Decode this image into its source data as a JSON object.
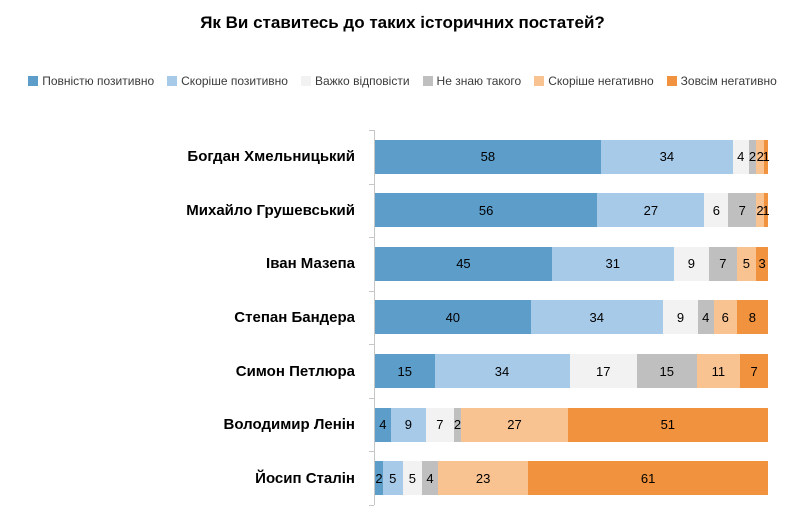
{
  "title": "Як Ви ставитесь до таких історичних постатей?",
  "chart_data": {
    "type": "bar",
    "stacked": true,
    "orientation": "horizontal",
    "title": "Як Ви ставитесь до таких історичних постатей?",
    "xlabel": "",
    "ylabel": "",
    "xlim": [
      0,
      100
    ],
    "grid": false,
    "legend_position": "top",
    "value_labels": "inside-center",
    "categories": [
      "Богдан Хмельницький",
      "Михайло Грушевський",
      "Іван Мазепа",
      "Степан Бандера",
      "Симон Петлюра",
      "Володимир Ленін",
      "Йосип Сталін"
    ],
    "series": [
      {
        "name": "Повністю позитивно",
        "color": "#5C9DCA",
        "values": [
          58,
          56,
          45,
          40,
          15,
          4,
          2
        ]
      },
      {
        "name": "Скоріше позитивно",
        "color": "#A8CAE9",
        "values": [
          34,
          27,
          31,
          34,
          34,
          9,
          5
        ]
      },
      {
        "name": "Важко відповісти",
        "color": "#F2F2F2",
        "values": [
          4,
          6,
          9,
          9,
          17,
          7,
          5
        ]
      },
      {
        "name": "Не знаю такого",
        "color": "#BFBFBF",
        "values": [
          2,
          7,
          7,
          4,
          15,
          2,
          4
        ]
      },
      {
        "name": "Скоріше негативно",
        "color": "#F9C291",
        "values": [
          2,
          2,
          5,
          6,
          11,
          27,
          23
        ]
      },
      {
        "name": "Зовсім негативно",
        "color": "#F0923E",
        "values": [
          1,
          1,
          3,
          8,
          7,
          51,
          61
        ]
      }
    ]
  },
  "colors": {
    "axis": "#c6c6c6",
    "background": "#ffffff",
    "text": "#000000"
  }
}
